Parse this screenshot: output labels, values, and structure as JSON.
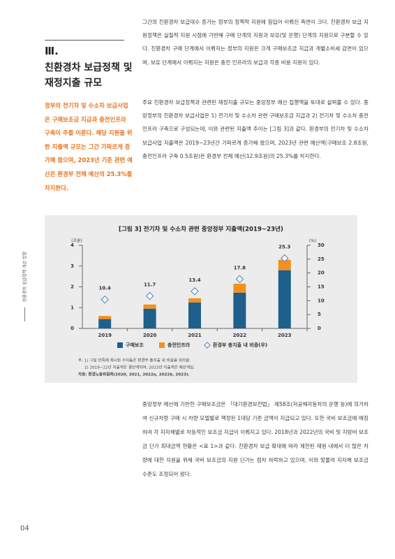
{
  "section": {
    "number": "Ⅲ.",
    "title": "친환경차 보급정책 및 재정지출 규모"
  },
  "summary": "정부의 전기차 및 수소차 보급사업은 구매보조금 지급과 충전인프라 구축이 주를 이룬다. 해당 지원을 위한 지출액 규모는 그간 가파르게 증가해 왔으며, 2023년 기준 관련 예산은 환경부 전체 예산의 25.3%를 차지한다.",
  "paragraphs": [
    "그간의 친환경차 보급대수 증가는 정부의 정책적 지원에 힘입어 이뤄진 측면이 크다. 친환경차 보급 지원정책은 실질적 지원 시점에 기반해 구매 단계의 지원과 보유(및 운행) 단계의 지원으로 구분할 수 있다. 친환경차 구매 단계에서 이뤄지는 정부의 지원은 크게 구매보조금 지급과 개별소비세 감면이 있으며, 보유 단계에서 이뤄지는 지원은 충전 인프라의 보급과 각종 비용 지원이 있다.",
    "주요 친환경차 보급정책과 관련된 재정지출 규모는 중앙정부 예산 집행액을 토대로 살펴볼 수 있다. 중앙정부의 친환경차 보급사업은 1) 전기차 및 수소차 관련 구매보조금 지급과 2) 전기차 및 수소차 충전인프라 구축으로 구성되는데, 이와 관련된 지출액 추이는 [그림 3]과 같다. 환경부의 전기차 및 수소차 보급사업 지출액은 2019~23년간 가파르게 증가해 왔으며, 2023년 관련 예산액(구매보조 2.8조원, 충전인프라 구축 0.5조원)은 환경부 전체 예산(12.9조원)의 25.3%를 차지한다.",
    "중앙정부 예산에 기반한 구매보조금은 「대기환경보전법」 제58조(저공해자동차의 운행 등)에 의거하여 신규차량 구매 시 차량 모델별로 책정된 1대당 기준 금액이 지급되고 있다. 또한 국비 보조금에 매칭하여 각 지자체별로 차등적인 보조금 지급이 이뤄지고 있다. 2018년과 2022년의 국비 및 지방비 보조금 단가 최대금액 현황은 <표 1>과 같다. 친환경차 보급 확대에 따라 제한된 재원 내에서 더 많은 차량에 대한 지원을 위해 국비 보조금의 지원 단가는 점차 하락하고 있으며, 이와 맞물려 지자체 보조금 수준도 조정되어 왔다."
  ],
  "side_label": "친환경차 보급정책 개선 방향",
  "page_number": "04",
  "chart_data": {
    "type": "bar",
    "stacked": true,
    "title": "[그림 3] 전기차 및 수소차 관련 중앙정부 지출액(2019~23년)",
    "y_label": "(조원)",
    "y2_label": "(%)",
    "categories": [
      "2019",
      "2020",
      "2021",
      "2022",
      "2023"
    ],
    "series": [
      {
        "name": "구매보조",
        "color": "#1f5f8b",
        "values": [
          0.45,
          0.95,
          1.25,
          1.72,
          2.8
        ]
      },
      {
        "name": "충전인프라",
        "color": "#f39020",
        "values": [
          0.15,
          0.2,
          0.2,
          0.43,
          0.5
        ]
      },
      {
        "name": "환경부 총지출 내 비중(우)",
        "color": "#4a7fc1",
        "axis": "y2",
        "marker": "diamond",
        "values": [
          10.4,
          11.7,
          13.4,
          17.8,
          25.3
        ]
      }
    ],
    "ylim": [
      0,
      4
    ],
    "yticks": [
      0,
      1,
      2,
      3,
      4
    ],
    "y2lim": [
      0,
      30
    ],
    "y2ticks": [
      0,
      5,
      10,
      15,
      20,
      25,
      30
    ],
    "notes": [
      "주: 1) 그림 안쪽에 제시된 수치들은 환경부 총지출 내 비중을 의미함.",
      "2) 2019~22년 지출액은 결산액이며, 2023년 지출액은 예산액임.",
      "자료: 환경노동위원회(2020, 2021, 2022a, 2022b, 2023)."
    ]
  }
}
